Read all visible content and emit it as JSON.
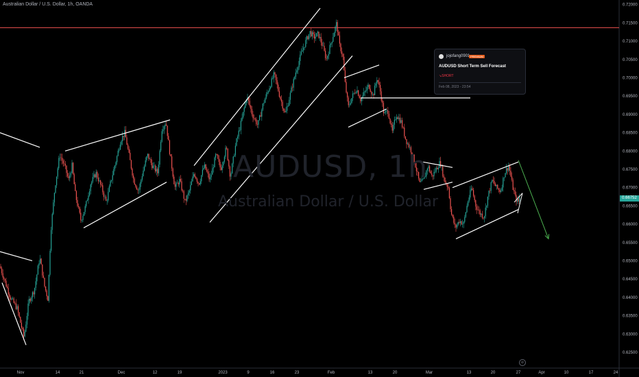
{
  "header": {
    "symbol_title": "Australian Dollar / U.S. Dollar, 1h, OANDA"
  },
  "watermark": {
    "big": "AUDUSD, 1h",
    "small": "Australian Dollar / U.S. Dollar"
  },
  "idea_card": {
    "author": "jojofang0901",
    "badge": "PREMIUM",
    "title": "AUDUSD Short Term Sell Forecast",
    "direction": "↘SHORT",
    "date": "Feb 08, 2023 - 23:54"
  },
  "price_tag": "0.66752",
  "goto_realtime": "⊘",
  "colors": {
    "up": "#26a69a",
    "down": "#ef5350",
    "resistance": "#ef5350",
    "channel": "#ffffff",
    "arrow": "#4caf50"
  },
  "chart_data": {
    "type": "candlestick",
    "instrument": "AUDUSD",
    "timeframe": "1h",
    "ylim": [
      0.6235,
      0.7205
    ],
    "xlim": [
      0,
      932
    ],
    "y_ticks": [
      "0.72000",
      "0.71500",
      "0.71000",
      "0.70500",
      "0.70000",
      "0.69500",
      "0.69000",
      "0.68500",
      "0.68000",
      "0.67500",
      "0.67000",
      "0.66500",
      "0.66000",
      "0.65500",
      "0.65000",
      "0.64500",
      "0.64000",
      "0.63500",
      "0.63000",
      "0.62500"
    ],
    "x_ticks": [
      {
        "label": "Nov",
        "x": 30
      },
      {
        "label": "14",
        "x": 84
      },
      {
        "label": "21",
        "x": 119
      },
      {
        "label": "Dec",
        "x": 177
      },
      {
        "label": "12",
        "x": 226
      },
      {
        "label": "19",
        "x": 262
      },
      {
        "label": "2023",
        "x": 325
      },
      {
        "label": "9",
        "x": 362
      },
      {
        "label": "16",
        "x": 397
      },
      {
        "label": "23",
        "x": 433
      },
      {
        "label": "Feb",
        "x": 483
      },
      {
        "label": "13",
        "x": 540
      },
      {
        "label": "20",
        "x": 576
      },
      {
        "label": "Mar",
        "x": 626
      },
      {
        "label": "13",
        "x": 684
      },
      {
        "label": "20",
        "x": 719
      },
      {
        "label": "27",
        "x": 756
      },
      {
        "label": "Apr",
        "x": 790
      },
      {
        "label": "10",
        "x": 826
      },
      {
        "label": "17",
        "x": 862
      },
      {
        "label": "24",
        "x": 898
      }
    ],
    "price_path": [
      [
        0,
        0.6485
      ],
      [
        15,
        0.64
      ],
      [
        25,
        0.637
      ],
      [
        35,
        0.629
      ],
      [
        42,
        0.639
      ],
      [
        50,
        0.642
      ],
      [
        58,
        0.651
      ],
      [
        65,
        0.643
      ],
      [
        70,
        0.6395
      ],
      [
        74,
        0.658
      ],
      [
        80,
        0.67
      ],
      [
        87,
        0.679
      ],
      [
        95,
        0.6755
      ],
      [
        100,
        0.672
      ],
      [
        105,
        0.676
      ],
      [
        110,
        0.668
      ],
      [
        118,
        0.661
      ],
      [
        125,
        0.665
      ],
      [
        132,
        0.671
      ],
      [
        140,
        0.674
      ],
      [
        148,
        0.67
      ],
      [
        155,
        0.666
      ],
      [
        162,
        0.672
      ],
      [
        170,
        0.678
      ],
      [
        176,
        0.683
      ],
      [
        182,
        0.685
      ],
      [
        188,
        0.679
      ],
      [
        195,
        0.672
      ],
      [
        202,
        0.669
      ],
      [
        208,
        0.674
      ],
      [
        215,
        0.679
      ],
      [
        222,
        0.676
      ],
      [
        230,
        0.674
      ],
      [
        236,
        0.686
      ],
      [
        242,
        0.688
      ],
      [
        248,
        0.679
      ],
      [
        255,
        0.67
      ],
      [
        262,
        0.672
      ],
      [
        270,
        0.666
      ],
      [
        276,
        0.669
      ],
      [
        283,
        0.674
      ],
      [
        290,
        0.671
      ],
      [
        298,
        0.676
      ],
      [
        306,
        0.672
      ],
      [
        315,
        0.679
      ],
      [
        322,
        0.675
      ],
      [
        330,
        0.681
      ],
      [
        336,
        0.673
      ],
      [
        344,
        0.682
      ],
      [
        352,
        0.688
      ],
      [
        360,
        0.695
      ],
      [
        368,
        0.69
      ],
      [
        376,
        0.687
      ],
      [
        384,
        0.693
      ],
      [
        392,
        0.697
      ],
      [
        400,
        0.701
      ],
      [
        408,
        0.695
      ],
      [
        416,
        0.69
      ],
      [
        424,
        0.696
      ],
      [
        432,
        0.702
      ],
      [
        440,
        0.707
      ],
      [
        446,
        0.71
      ],
      [
        452,
        0.7125
      ],
      [
        458,
        0.711
      ],
      [
        464,
        0.712
      ],
      [
        470,
        0.709
      ],
      [
        476,
        0.705
      ],
      [
        482,
        0.709
      ],
      [
        488,
        0.713
      ],
      [
        491,
        0.715
      ],
      [
        495,
        0.709
      ],
      [
        500,
        0.706
      ],
      [
        503,
        0.699
      ],
      [
        508,
        0.692
      ],
      [
        514,
        0.695
      ],
      [
        520,
        0.697
      ],
      [
        526,
        0.694
      ],
      [
        532,
        0.696
      ],
      [
        538,
        0.698
      ],
      [
        544,
        0.695
      ],
      [
        550,
        0.7
      ],
      [
        555,
        0.696
      ],
      [
        560,
        0.69
      ],
      [
        566,
        0.691
      ],
      [
        572,
        0.685
      ],
      [
        578,
        0.69
      ],
      [
        585,
        0.688
      ],
      [
        592,
        0.683
      ],
      [
        600,
        0.68
      ],
      [
        606,
        0.676
      ],
      [
        612,
        0.671
      ],
      [
        618,
        0.672
      ],
      [
        624,
        0.676
      ],
      [
        630,
        0.673
      ],
      [
        636,
        0.675
      ],
      [
        642,
        0.677
      ],
      [
        648,
        0.672
      ],
      [
        654,
        0.67
      ],
      [
        658,
        0.663
      ],
      [
        664,
        0.659
      ],
      [
        670,
        0.661
      ],
      [
        676,
        0.66
      ],
      [
        682,
        0.666
      ],
      [
        688,
        0.67
      ],
      [
        694,
        0.665
      ],
      [
        700,
        0.663
      ],
      [
        706,
        0.662
      ],
      [
        712,
        0.668
      ],
      [
        718,
        0.672
      ],
      [
        724,
        0.67
      ],
      [
        730,
        0.669
      ],
      [
        736,
        0.674
      ],
      [
        742,
        0.676
      ],
      [
        748,
        0.67
      ],
      [
        752,
        0.667
      ],
      [
        756,
        0.666
      ],
      [
        758,
        0.6675
      ]
    ],
    "resistance_level": 0.7137,
    "channels": [
      [
        [
          0,
          0.685
        ],
        [
          58,
          0.681
        ]
      ],
      [
        [
          0,
          0.6525
        ],
        [
          47,
          0.65
        ]
      ],
      [
        [
          3,
          0.644
        ],
        [
          38,
          0.627
        ]
      ],
      [
        [
          95,
          0.68
        ],
        [
          248,
          0.6885
        ]
      ],
      [
        [
          122,
          0.659
        ],
        [
          243,
          0.6715
        ]
      ],
      [
        [
          283,
          0.676
        ],
        [
          467,
          0.719
        ]
      ],
      [
        [
          306,
          0.6605
        ],
        [
          514,
          0.706
        ]
      ],
      [
        [
          502,
          0.7
        ],
        [
          553,
          0.7035
        ]
      ],
      [
        [
          508,
          0.6865
        ],
        [
          564,
          0.6915
        ]
      ],
      [
        [
          526,
          0.6945
        ],
        [
          686,
          0.6945
        ]
      ],
      [
        [
          617,
          0.677
        ],
        [
          660,
          0.6755
        ]
      ],
      [
        [
          618,
          0.6695
        ],
        [
          660,
          0.6715
        ]
      ],
      [
        [
          660,
          0.67
        ],
        [
          756,
          0.677
        ]
      ],
      [
        [
          665,
          0.656
        ],
        [
          756,
          0.664
        ]
      ]
    ],
    "forecast_arrow": [
      [
        756,
        0.6775
      ],
      [
        800,
        0.656
      ]
    ],
    "small_wedge": [
      [
        750,
        0.666
      ],
      [
        762,
        0.6685
      ],
      [
        755,
        0.663
      ]
    ]
  }
}
